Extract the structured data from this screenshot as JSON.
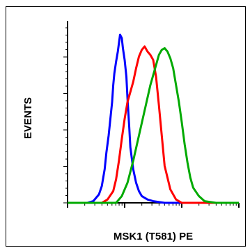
{
  "chart_data": {
    "type": "line",
    "title": "",
    "xlabel": "MSK1 (T581) PE",
    "ylabel": "EVENTS",
    "x_scale": "log",
    "grid": false,
    "legend": "none",
    "series": [
      {
        "color": "#0000ff",
        "x": [
          0.0,
          0.35,
          0.45,
          0.55,
          0.6,
          0.65,
          0.68,
          0.72,
          0.75,
          0.78,
          0.8,
          0.82,
          0.85,
          0.88,
          0.9,
          0.92,
          0.95,
          0.97,
          1.0,
          1.03,
          1.05,
          1.08,
          1.1,
          1.15,
          1.2,
          1.25,
          1.3,
          1.4,
          1.5,
          1.7,
          2.0
        ],
        "y": [
          0,
          0,
          0.01,
          0.05,
          0.1,
          0.2,
          0.3,
          0.4,
          0.5,
          0.6,
          0.7,
          0.77,
          0.84,
          0.9,
          0.95,
          1.0,
          0.98,
          0.92,
          0.85,
          0.75,
          0.62,
          0.45,
          0.33,
          0.2,
          0.12,
          0.07,
          0.04,
          0.02,
          0.01,
          0,
          0
        ]
      },
      {
        "color": "#ff0000",
        "x": [
          0.0,
          0.6,
          0.7,
          0.8,
          0.85,
          0.9,
          0.95,
          1.0,
          1.05,
          1.1,
          1.15,
          1.2,
          1.25,
          1.3,
          1.35,
          1.4,
          1.45,
          1.5,
          1.55,
          1.6,
          1.65,
          1.7,
          1.8,
          1.9,
          2.0,
          3.0
        ],
        "y": [
          0,
          0,
          0.02,
          0.07,
          0.14,
          0.25,
          0.38,
          0.5,
          0.6,
          0.66,
          0.72,
          0.8,
          0.87,
          0.91,
          0.93,
          0.9,
          0.88,
          0.85,
          0.75,
          0.58,
          0.4,
          0.22,
          0.08,
          0.02,
          0,
          0
        ]
      },
      {
        "color": "#00aa00",
        "x": [
          0.0,
          0.85,
          0.95,
          1.05,
          1.15,
          1.25,
          1.35,
          1.45,
          1.55,
          1.6,
          1.65,
          1.7,
          1.75,
          1.8,
          1.85,
          1.9,
          1.95,
          2.0,
          2.05,
          2.1,
          2.15,
          2.2,
          2.3,
          2.4,
          2.6,
          3.0
        ],
        "y": [
          0,
          0,
          0.04,
          0.12,
          0.25,
          0.4,
          0.55,
          0.7,
          0.82,
          0.88,
          0.91,
          0.92,
          0.9,
          0.86,
          0.8,
          0.7,
          0.6,
          0.48,
          0.35,
          0.24,
          0.15,
          0.09,
          0.04,
          0.01,
          0,
          0
        ]
      }
    ],
    "xlim": [
      0,
      3
    ],
    "ylim": [
      0,
      1
    ]
  }
}
